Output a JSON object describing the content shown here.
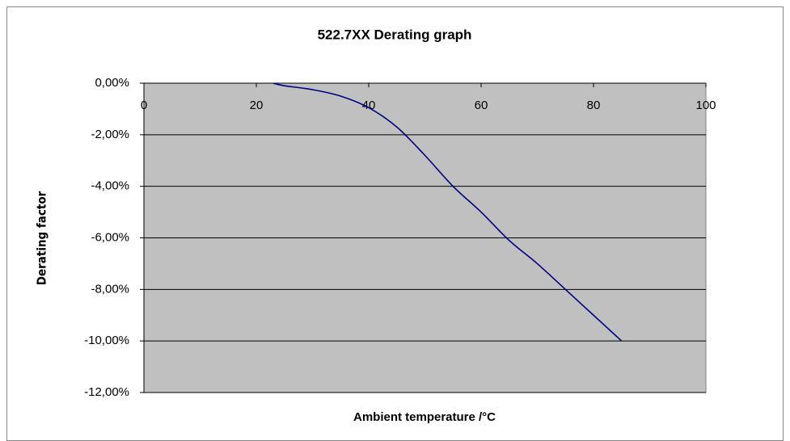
{
  "chart_data": {
    "type": "line",
    "title": "522.7XX Derating graph",
    "x_label": "Ambient temperature /°C",
    "y_label": "Derating factor",
    "x": [
      23,
      25,
      30,
      35,
      40,
      45,
      50,
      55,
      60,
      65,
      70,
      75,
      80,
      85
    ],
    "values": [
      0,
      -0.1,
      -0.25,
      -0.5,
      -0.95,
      -1.7,
      -2.8,
      -4.0,
      -5.0,
      -6.1,
      -7.0,
      -8.0,
      -9.0,
      -10.0
    ],
    "color": "#000080",
    "xlim": [
      0,
      100
    ],
    "xticks": [
      0,
      20,
      40,
      60,
      80,
      100
    ],
    "ylim": [
      -12,
      0
    ],
    "yticks": [
      {
        "value": 0,
        "label": "0,00%"
      },
      {
        "value": -2,
        "label": "-2,00%"
      },
      {
        "value": -4,
        "label": "-4,00%"
      },
      {
        "value": -6,
        "label": "-6,00%"
      },
      {
        "value": -8,
        "label": "-8,00%"
      },
      {
        "value": -10,
        "label": "-10,00%"
      },
      {
        "value": -12,
        "label": "-12,00%"
      }
    ],
    "grid": true,
    "plot_background": "#c0c0c0"
  }
}
